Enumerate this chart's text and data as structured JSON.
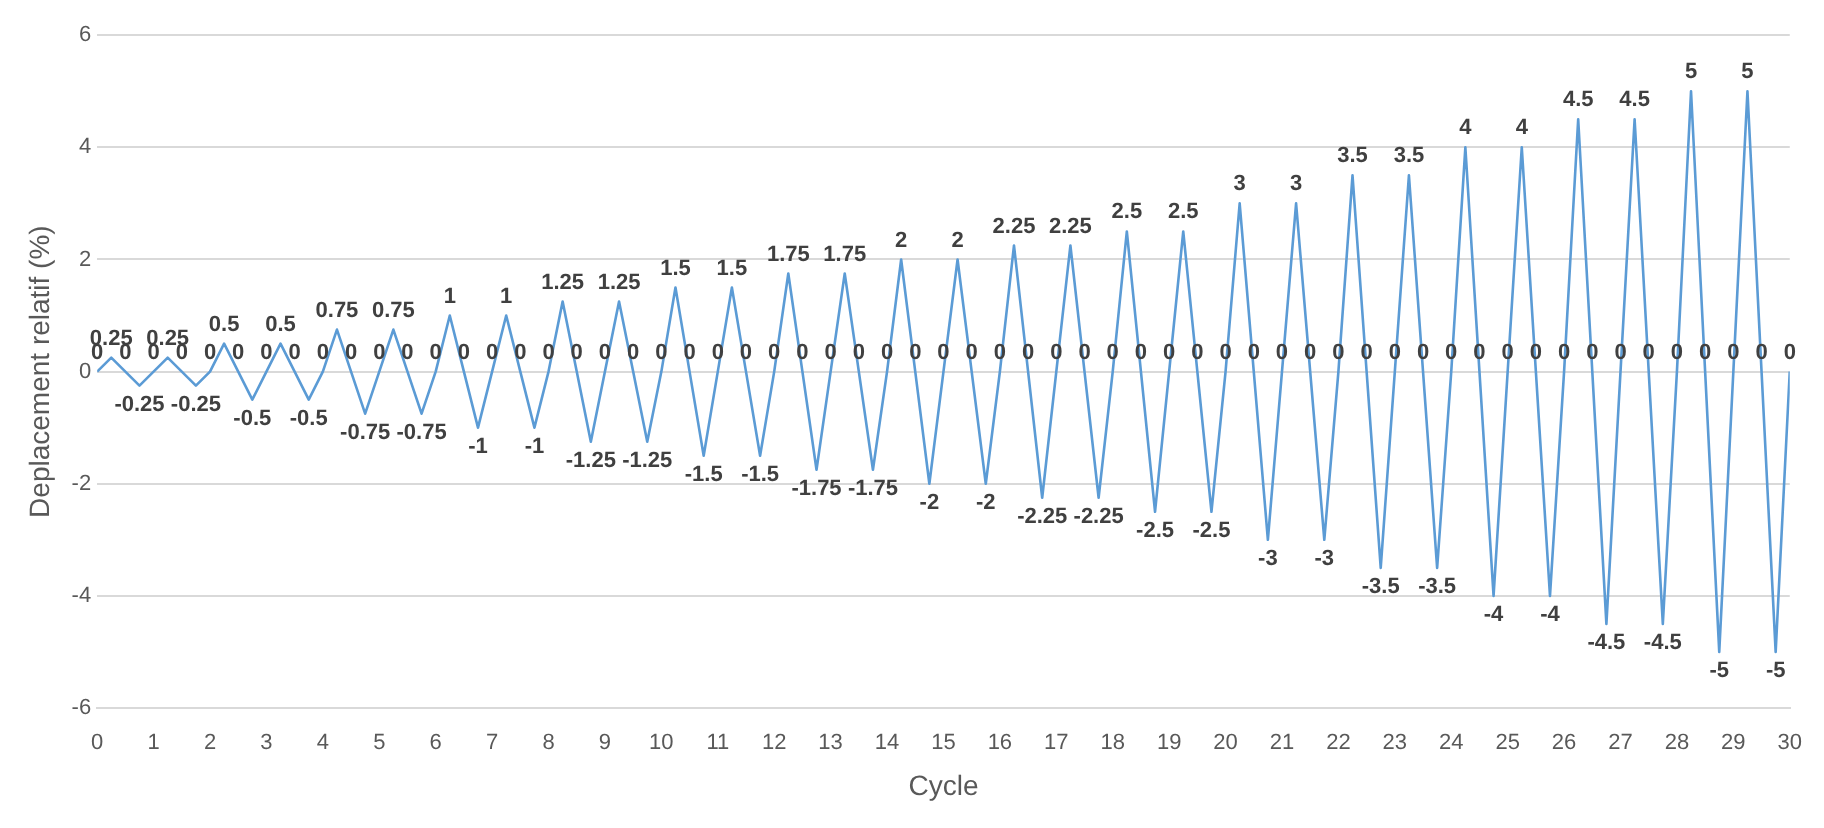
{
  "chart_data": {
    "type": "line",
    "xlabel": "Cycle",
    "ylabel": "Deplacement relatif (%)",
    "xlim": [
      0,
      30
    ],
    "xticks": [
      0,
      1,
      2,
      3,
      4,
      5,
      6,
      7,
      8,
      9,
      10,
      11,
      12,
      13,
      14,
      15,
      16,
      17,
      18,
      19,
      20,
      21,
      22,
      23,
      24,
      25,
      26,
      27,
      28,
      29,
      30
    ],
    "ylim": [
      -6,
      6
    ],
    "yticks": [
      -6,
      -4,
      -2,
      0,
      2,
      4,
      6
    ],
    "grid": "y",
    "legend": false,
    "marker": "none",
    "line_style": "solid",
    "data_labels": true,
    "series": [
      {
        "color": "#5b9bd5",
        "x": [
          0,
          0.25,
          0.5,
          0.75,
          1,
          1.25,
          1.5,
          1.75,
          2,
          2.25,
          2.5,
          2.75,
          3,
          3.25,
          3.5,
          3.75,
          4,
          4.25,
          4.5,
          4.75,
          5,
          5.25,
          5.5,
          5.75,
          6,
          6.25,
          6.5,
          6.75,
          7,
          7.25,
          7.5,
          7.75,
          8,
          8.25,
          8.5,
          8.75,
          9,
          9.25,
          9.5,
          9.75,
          10,
          10.25,
          10.5,
          10.75,
          11,
          11.25,
          11.5,
          11.75,
          12,
          12.25,
          12.5,
          12.75,
          13,
          13.25,
          13.5,
          13.75,
          14,
          14.25,
          14.5,
          14.75,
          15,
          15.25,
          15.5,
          15.75,
          16,
          16.25,
          16.5,
          16.75,
          17,
          17.25,
          17.5,
          17.75,
          18,
          18.25,
          18.5,
          18.75,
          19,
          19.25,
          19.5,
          19.75,
          20,
          20.25,
          20.5,
          20.75,
          21,
          21.25,
          21.5,
          21.75,
          22,
          22.25,
          22.5,
          22.75,
          23,
          23.25,
          23.5,
          23.75,
          24,
          24.25,
          24.5,
          24.75,
          25,
          25.25,
          25.5,
          25.75,
          26,
          26.25,
          26.5,
          26.75,
          27,
          27.25,
          27.5,
          27.75,
          28,
          28.25,
          28.5,
          28.75,
          29,
          29.25,
          29.5,
          29.75,
          30
        ],
        "values": [
          0,
          0.25,
          0,
          -0.25,
          0,
          0.25,
          0,
          -0.25,
          0,
          0.5,
          0,
          -0.5,
          0,
          0.5,
          0,
          -0.5,
          0,
          0.75,
          0,
          -0.75,
          0,
          0.75,
          0,
          -0.75,
          0,
          1,
          0,
          -1,
          0,
          1,
          0,
          -1,
          0,
          1.25,
          0,
          -1.25,
          0,
          1.25,
          0,
          -1.25,
          0,
          1.5,
          0,
          -1.5,
          0,
          1.5,
          0,
          -1.5,
          0,
          1.75,
          0,
          -1.75,
          0,
          1.75,
          0,
          -1.75,
          0,
          2,
          0,
          -2,
          0,
          2,
          0,
          -2,
          0,
          2.25,
          0,
          -2.25,
          0,
          2.25,
          0,
          -2.25,
          0,
          2.5,
          0,
          -2.5,
          0,
          2.5,
          0,
          -2.5,
          0,
          3,
          0,
          -3,
          0,
          3,
          0,
          -3,
          0,
          3.5,
          0,
          -3.5,
          0,
          3.5,
          0,
          -3.5,
          0,
          4,
          0,
          -4,
          0,
          4,
          0,
          -4,
          0,
          4.5,
          0,
          -4.5,
          0,
          4.5,
          0,
          -4.5,
          0,
          5,
          0,
          -5,
          0,
          5,
          0,
          -5,
          0
        ]
      }
    ]
  }
}
